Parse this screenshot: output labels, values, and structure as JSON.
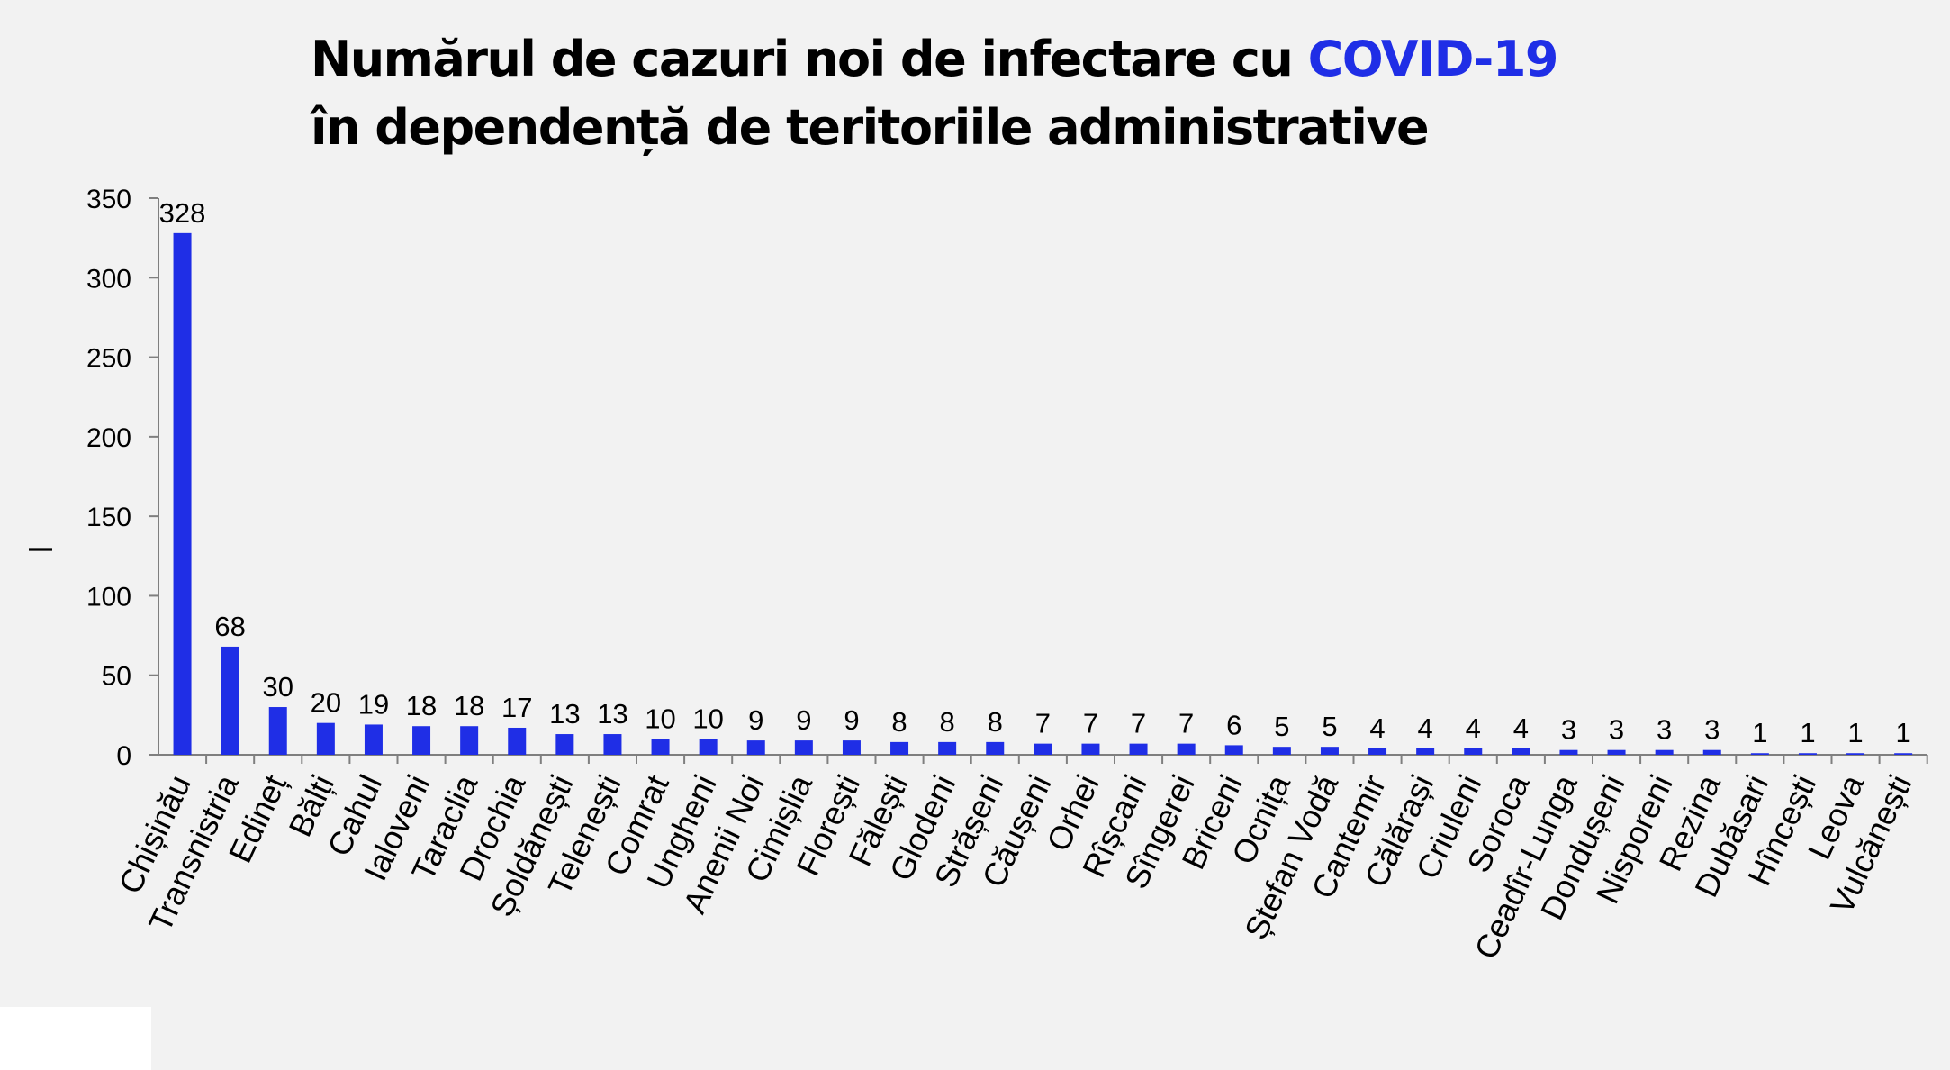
{
  "chart_data": {
    "type": "bar",
    "title_line1_main": "Numărul de cazuri noi de infectare cu ",
    "title_line1_accent": "COVID-19",
    "title_line2": "în dependență de teritoriile administrative",
    "ylabel": "l",
    "ylim": [
      0,
      350
    ],
    "yticks": [
      "0",
      "50",
      "100",
      "150",
      "200",
      "250",
      "300",
      "350"
    ],
    "grid": false,
    "legend": "none",
    "bar_color": "#1f2ee6",
    "title_accent_color": "#1f2ee6",
    "categories": [
      "Chișinău",
      "Transnistria",
      "Edineț",
      "Bălți",
      "Cahul",
      "Ialoveni",
      "Taraclia",
      "Drochia",
      "Șoldănești",
      "Telenești",
      "Comrat",
      "Ungheni",
      "Anenii Noi",
      "Cimișlia",
      "Florești",
      "Fălești",
      "Glodeni",
      "Strășeni",
      "Căușeni",
      "Orhei",
      "Rîșcani",
      "Sîngerei",
      "Briceni",
      "Ocnița",
      "Ștefan Vodă",
      "Cantemir",
      "Călărași",
      "Criuleni",
      "Soroca",
      "Ceadîr-Lunga",
      "Dondușeni",
      "Nisporeni",
      "Rezina",
      "Dubăsari",
      "Hîncești",
      "Leova",
      "Vulcănești"
    ],
    "values": [
      328,
      68,
      30,
      20,
      19,
      18,
      18,
      17,
      13,
      13,
      10,
      10,
      9,
      9,
      9,
      8,
      8,
      8,
      7,
      7,
      7,
      7,
      6,
      5,
      5,
      4,
      4,
      4,
      4,
      3,
      3,
      3,
      3,
      1,
      1,
      1,
      1
    ],
    "data_labels": [
      "328",
      "68",
      "30",
      "20",
      "19",
      "18",
      "18",
      "17",
      "13",
      "13",
      "10",
      "10",
      "9",
      "9",
      "9",
      "8",
      "8",
      "8",
      "7",
      "7",
      "7",
      "7",
      "6",
      "5",
      "5",
      "4",
      "4",
      "4",
      "4",
      "3",
      "3",
      "3",
      "3",
      "1",
      "1",
      "1",
      "1"
    ]
  }
}
